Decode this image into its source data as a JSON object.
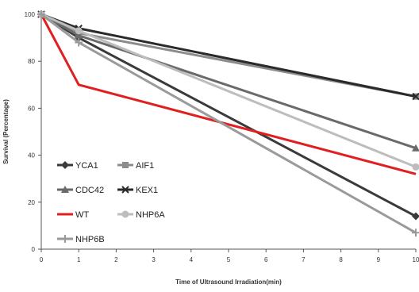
{
  "chart_data": {
    "type": "line",
    "title": "",
    "xlabel": "Time of Ultrasound Irradiation(min)",
    "ylabel": "Survival (Percentage)",
    "xlim": [
      0,
      10
    ],
    "ylim": [
      0,
      100
    ],
    "xticks": [
      "0",
      "1",
      "2",
      "3",
      "4",
      "5",
      "6",
      "7",
      "8",
      "9",
      "10"
    ],
    "yticks": [
      "0",
      "20",
      "40",
      "60",
      "80",
      "100"
    ],
    "grid": false,
    "legend_position": "left-middle inside plot",
    "series": [
      {
        "name": "YCA1",
        "color": "#3a3a3a",
        "marker": "diamond",
        "x": [
          0,
          1,
          10
        ],
        "y": [
          100,
          90,
          14
        ]
      },
      {
        "name": "AIF1",
        "color": "#8c8c8c",
        "marker": "square",
        "x": [
          0,
          1,
          10
        ],
        "y": [
          100,
          92,
          65
        ]
      },
      {
        "name": "CDC42",
        "color": "#6a6a6a",
        "marker": "triangle",
        "x": [
          0,
          1,
          10
        ],
        "y": [
          100,
          91,
          43
        ]
      },
      {
        "name": "KEX1",
        "color": "#2a2a2a",
        "marker": "x",
        "x": [
          0,
          1,
          10
        ],
        "y": [
          100,
          94,
          65
        ]
      },
      {
        "name": "WT",
        "color": "#e02020",
        "marker": "none",
        "x": [
          0,
          1,
          10
        ],
        "y": [
          100,
          70,
          32
        ]
      },
      {
        "name": "NHP6A",
        "color": "#bdbdbd",
        "marker": "circle",
        "x": [
          0,
          1,
          10
        ],
        "y": [
          100,
          93,
          35
        ]
      },
      {
        "name": "NHP6B",
        "color": "#9a9a9a",
        "marker": "plus",
        "x": [
          0,
          1,
          10
        ],
        "y": [
          100,
          88,
          7
        ]
      }
    ]
  }
}
